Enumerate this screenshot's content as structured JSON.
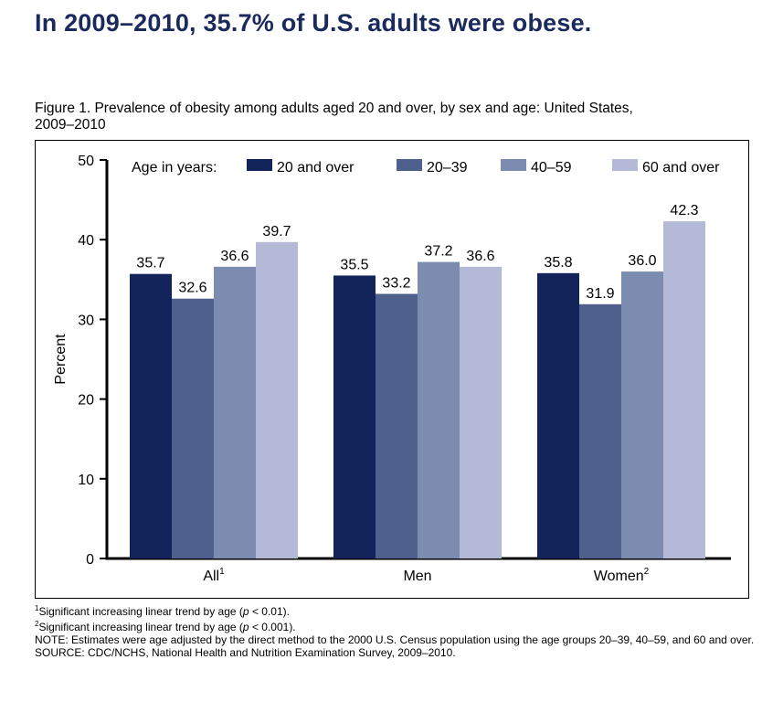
{
  "headline": "In 2009–2010, 35.7% of U.S. adults were obese.",
  "figure_caption_line1": "Figure 1. Prevalence of obesity among adults aged 20 and over, by sex and age: United States,",
  "figure_caption_line2": "2009–2010",
  "legend_title": "Age in years:",
  "colors": {
    "series": [
      "#13245a",
      "#50608c",
      "#7c8bb0",
      "#b3b9d6"
    ],
    "headline": "#1b2a5c"
  },
  "chart_data": {
    "type": "bar",
    "categories": [
      "All",
      "Men",
      "Women"
    ],
    "category_superscripts": [
      "1",
      "",
      "2"
    ],
    "series": [
      {
        "name": "20 and over",
        "values": [
          35.7,
          35.5,
          35.8
        ]
      },
      {
        "name": "20–39",
        "values": [
          32.6,
          33.2,
          31.9
        ]
      },
      {
        "name": "40–59",
        "values": [
          36.6,
          37.2,
          36.0
        ]
      },
      {
        "name": "60 and over",
        "values": [
          39.7,
          36.6,
          42.3
        ]
      }
    ],
    "value_labels": [
      [
        "35.7",
        "35.5",
        "35.8"
      ],
      [
        "32.6",
        "33.2",
        "31.9"
      ],
      [
        "36.6",
        "37.2",
        "36.0"
      ],
      [
        "39.7",
        "36.6",
        "42.3"
      ]
    ],
    "ylabel": "Percent",
    "xlabel": "",
    "ylim": [
      0,
      50
    ],
    "yticks": [
      0,
      10,
      20,
      30,
      40,
      50
    ],
    "grid": false,
    "legend_placement": "top"
  },
  "notes": {
    "fn1_text": "Significant increasing linear trend by age (",
    "fn1_p": "p",
    "fn1_rest": " < 0.01).",
    "fn1_sup": "1",
    "fn2_text": "Significant increasing linear trend by age (",
    "fn2_p": "p",
    "fn2_rest": " < 0.001).",
    "fn2_sup": "2",
    "note": "NOTE: Estimates were age adjusted by the direct method to the 2000 U.S. Census population using the age groups 20–39, 40–59, and 60 and over.",
    "source": "SOURCE: CDC/NCHS, National Health and Nutrition Examination Survey, 2009–2010."
  }
}
